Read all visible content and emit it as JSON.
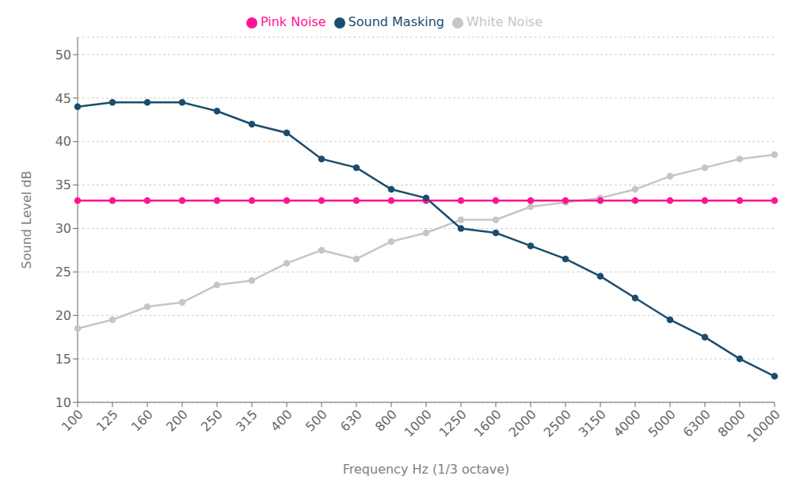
{
  "chart_data": {
    "type": "line",
    "categories": [
      "100",
      "125",
      "160",
      "200",
      "250",
      "315",
      "400",
      "500",
      "630",
      "800",
      "1000",
      "1250",
      "1600",
      "2000",
      "2500",
      "3150",
      "4000",
      "5000",
      "6300",
      "8000",
      "10000"
    ],
    "series": [
      {
        "name": "White Noise",
        "color": "#c8c5c5",
        "values": [
          18.5,
          19.5,
          21.0,
          21.5,
          23.5,
          24.0,
          26.0,
          27.5,
          26.5,
          28.5,
          29.5,
          31.0,
          31.0,
          32.5,
          33.0,
          33.5,
          34.5,
          36.0,
          37.0,
          38.0,
          38.5
        ]
      },
      {
        "name": "Pink Noise",
        "color": "#ff1493",
        "values": [
          33.2,
          33.2,
          33.2,
          33.2,
          33.2,
          33.2,
          33.2,
          33.2,
          33.2,
          33.2,
          33.2,
          33.2,
          33.2,
          33.2,
          33.2,
          33.2,
          33.2,
          33.2,
          33.2,
          33.2,
          33.2
        ]
      },
      {
        "name": "Sound Masking",
        "color": "#1b4d6e",
        "values": [
          44.0,
          44.5,
          44.5,
          44.5,
          43.5,
          42.0,
          41.0,
          38.0,
          37.0,
          34.5,
          33.5,
          30.0,
          29.5,
          28.0,
          26.5,
          24.5,
          22.0,
          19.5,
          17.5,
          15.0,
          13.0
        ]
      }
    ],
    "xlabel": "Frequency Hz (1/3 octave)",
    "ylabel": "Sound Level dB",
    "ylim": [
      10,
      52
    ],
    "yticks": [
      10,
      15,
      20,
      25,
      30,
      35,
      40,
      45,
      50
    ],
    "grid": true,
    "legend": "top",
    "marker": "circle"
  }
}
